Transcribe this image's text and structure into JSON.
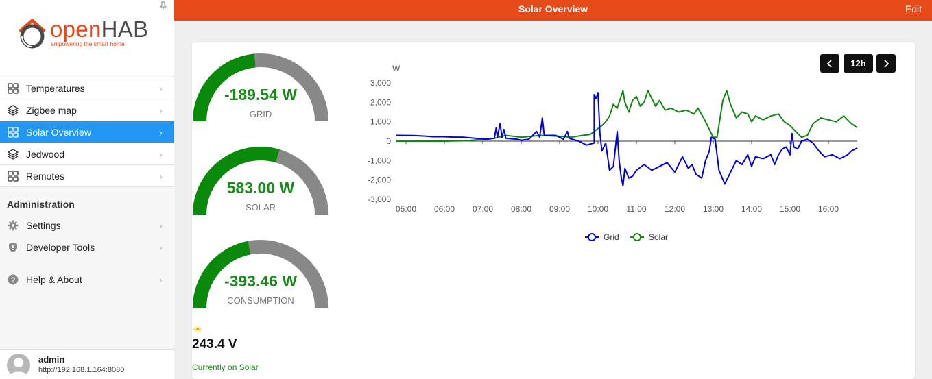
{
  "app": {
    "brand_open": "open",
    "brand_hab": "HAB",
    "tagline": "empowering the smart home"
  },
  "sidebar": {
    "items": [
      {
        "label": "Temperatures",
        "icon": "grid-icon",
        "active": false
      },
      {
        "label": "Zigbee map",
        "icon": "layers-icon",
        "active": false
      },
      {
        "label": "Solar Overview",
        "icon": "grid-icon",
        "active": true
      },
      {
        "label": "Jedwood",
        "icon": "layers-icon",
        "active": false
      },
      {
        "label": "Remotes",
        "icon": "grid-icon",
        "active": false
      }
    ],
    "admin_title": "Administration",
    "admin_items": [
      {
        "label": "Settings",
        "icon": "gear-icon"
      },
      {
        "label": "Developer Tools",
        "icon": "shield-icon"
      },
      {
        "label": "Help & About",
        "icon": "help-icon"
      }
    ],
    "user": {
      "name": "admin",
      "url": "http://192.168.1.164:8080"
    }
  },
  "header": {
    "title": "Solar Overview",
    "edit_label": "Edit"
  },
  "gauges": [
    {
      "value": "-189.54 W",
      "label": "GRID",
      "fraction": 0.47
    },
    {
      "value": "583.00 W",
      "label": "SOLAR",
      "fraction": 0.59
    },
    {
      "value": "-393.46 W",
      "label": "CONSUMPTION",
      "fraction": 0.44
    }
  ],
  "status": {
    "voltage": "243.4 V",
    "text": "Currently on Solar",
    "icon": "sun-icon"
  },
  "controls": {
    "prev": "‹",
    "period": "12h",
    "next": "›"
  },
  "colors": {
    "accent": "#e64a19",
    "active": "#2196f3",
    "gauge_fill": "#0a8a0a",
    "gauge_track": "#888888",
    "grid_series": "#0000dd",
    "solar_series": "#118811"
  },
  "chart_data": {
    "type": "line",
    "ylabel": "W",
    "ylim": [
      -3000,
      3000
    ],
    "yticks": [
      "3,000",
      "2,000",
      "1,000",
      "0",
      "-1,000",
      "-2,000",
      "-3,000"
    ],
    "xlim": [
      4.75,
      16.75
    ],
    "xticks": [
      "05:00",
      "06:00",
      "07:00",
      "08:00",
      "09:00",
      "10:00",
      "11:00",
      "12:00",
      "13:00",
      "14:00",
      "15:00",
      "16:00"
    ],
    "grid": false,
    "legend": "bottom-center",
    "series": [
      {
        "name": "Grid",
        "color": "#0000dd",
        "points": [
          [
            4.75,
            300
          ],
          [
            5.2,
            290
          ],
          [
            5.5,
            260
          ],
          [
            5.7,
            230
          ],
          [
            6.0,
            230
          ],
          [
            6.2,
            210
          ],
          [
            6.5,
            200
          ],
          [
            6.8,
            150
          ],
          [
            7.1,
            100
          ],
          [
            7.3,
            150
          ],
          [
            7.35,
            700
          ],
          [
            7.38,
            200
          ],
          [
            7.45,
            900
          ],
          [
            7.5,
            200
          ],
          [
            7.55,
            600
          ],
          [
            7.6,
            150
          ],
          [
            7.9,
            100
          ],
          [
            8.0,
            50
          ],
          [
            8.2,
            100
          ],
          [
            8.4,
            500
          ],
          [
            8.48,
            200
          ],
          [
            8.55,
            1200
          ],
          [
            8.6,
            300
          ],
          [
            8.9,
            300
          ],
          [
            9.1,
            100
          ],
          [
            9.2,
            500
          ],
          [
            9.25,
            150
          ],
          [
            9.5,
            0
          ],
          [
            9.7,
            -200
          ],
          [
            9.9,
            -100
          ],
          [
            9.9,
            2400
          ],
          [
            9.95,
            2200
          ],
          [
            10.0,
            2500
          ],
          [
            10.05,
            400
          ],
          [
            10.1,
            -500
          ],
          [
            10.2,
            -100
          ],
          [
            10.3,
            -1500
          ],
          [
            10.4,
            -1300
          ],
          [
            10.5,
            500
          ],
          [
            10.55,
            -1000
          ],
          [
            10.6,
            -1800
          ],
          [
            10.65,
            -2300
          ],
          [
            10.7,
            -1400
          ],
          [
            10.8,
            -1900
          ],
          [
            10.9,
            -1800
          ],
          [
            11.0,
            -1500
          ],
          [
            11.2,
            -1200
          ],
          [
            11.4,
            -1500
          ],
          [
            11.6,
            -1300
          ],
          [
            11.8,
            -1100
          ],
          [
            12.0,
            -1600
          ],
          [
            12.2,
            -800
          ],
          [
            12.35,
            -1400
          ],
          [
            12.45,
            -1200
          ],
          [
            12.55,
            -1700
          ],
          [
            12.7,
            -1900
          ],
          [
            12.8,
            -1000
          ],
          [
            12.9,
            -500
          ],
          [
            12.95,
            200
          ],
          [
            13.05,
            100
          ],
          [
            13.15,
            -1500
          ],
          [
            13.3,
            -2200
          ],
          [
            13.45,
            -1600
          ],
          [
            13.6,
            -1000
          ],
          [
            13.75,
            -1200
          ],
          [
            13.9,
            -700
          ],
          [
            14.0,
            -1300
          ],
          [
            14.1,
            -800
          ],
          [
            14.3,
            -900
          ],
          [
            14.5,
            -700
          ],
          [
            14.6,
            -1200
          ],
          [
            14.7,
            -700
          ],
          [
            14.8,
            -400
          ],
          [
            14.9,
            -300
          ],
          [
            15.0,
            -700
          ],
          [
            15.05,
            400
          ],
          [
            15.1,
            -300
          ],
          [
            15.2,
            -400
          ],
          [
            15.3,
            0
          ],
          [
            15.45,
            100
          ],
          [
            15.6,
            -100
          ],
          [
            15.75,
            -500
          ],
          [
            15.9,
            -800
          ],
          [
            16.1,
            -700
          ],
          [
            16.3,
            -900
          ],
          [
            16.5,
            -700
          ],
          [
            16.6,
            -500
          ],
          [
            16.75,
            -350
          ]
        ]
      },
      {
        "name": "Solar",
        "color": "#118811",
        "points": [
          [
            4.75,
            0
          ],
          [
            6.0,
            0
          ],
          [
            6.6,
            20
          ],
          [
            7.0,
            100
          ],
          [
            7.3,
            150
          ],
          [
            7.6,
            300
          ],
          [
            8.0,
            200
          ],
          [
            8.5,
            300
          ],
          [
            9.0,
            250
          ],
          [
            9.3,
            200
          ],
          [
            9.6,
            300
          ],
          [
            9.8,
            350
          ],
          [
            10.0,
            650
          ],
          [
            10.1,
            800
          ],
          [
            10.2,
            1000
          ],
          [
            10.3,
            1300
          ],
          [
            10.4,
            1900
          ],
          [
            10.5,
            1700
          ],
          [
            10.6,
            2300
          ],
          [
            10.65,
            2600
          ],
          [
            10.7,
            2000
          ],
          [
            10.8,
            1500
          ],
          [
            10.9,
            2100
          ],
          [
            11.0,
            2300
          ],
          [
            11.1,
            1800
          ],
          [
            11.2,
            2000
          ],
          [
            11.3,
            2600
          ],
          [
            11.4,
            2200
          ],
          [
            11.5,
            1800
          ],
          [
            11.6,
            2100
          ],
          [
            11.75,
            1600
          ],
          [
            11.9,
            1700
          ],
          [
            12.0,
            1600
          ],
          [
            12.1,
            1500
          ],
          [
            12.3,
            1600
          ],
          [
            12.5,
            1400
          ],
          [
            12.6,
            1700
          ],
          [
            12.75,
            1200
          ],
          [
            12.85,
            800
          ],
          [
            13.0,
            200
          ],
          [
            13.1,
            200
          ],
          [
            13.25,
            2100
          ],
          [
            13.35,
            2600
          ],
          [
            13.45,
            1900
          ],
          [
            13.6,
            1200
          ],
          [
            13.75,
            1500
          ],
          [
            13.9,
            1400
          ],
          [
            14.0,
            1000
          ],
          [
            14.1,
            1300
          ],
          [
            14.3,
            1100
          ],
          [
            14.5,
            1300
          ],
          [
            14.7,
            1400
          ],
          [
            14.85,
            1000
          ],
          [
            15.0,
            800
          ],
          [
            15.2,
            400
          ],
          [
            15.3,
            200
          ],
          [
            15.45,
            300
          ],
          [
            15.6,
            900
          ],
          [
            15.8,
            1200
          ],
          [
            16.0,
            1100
          ],
          [
            16.2,
            1000
          ],
          [
            16.4,
            1300
          ],
          [
            16.6,
            900
          ],
          [
            16.75,
            700
          ]
        ]
      }
    ]
  }
}
